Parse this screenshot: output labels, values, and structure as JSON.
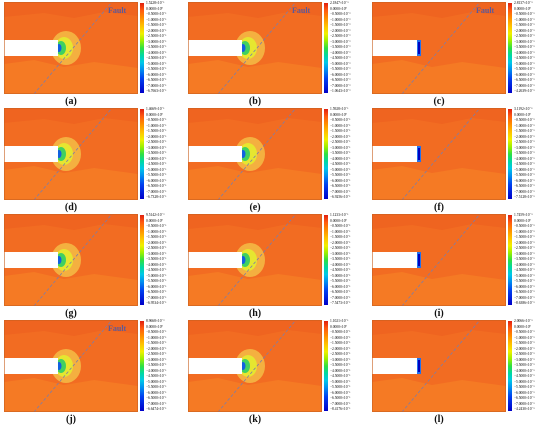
{
  "fault_label": "Fault",
  "panels": [
    {
      "caption": "(a)",
      "top": "1.5228×10⁻¹",
      "bottom": "−6.7663×10⁻¹",
      "shape": "hole",
      "fault_label": true
    },
    {
      "caption": "(b)",
      "top": "2.1847×10⁻³",
      "bottom": "−1.0643×10⁻²",
      "shape": "hole",
      "fault_label": true
    },
    {
      "caption": "(c)",
      "top": "2.8137×10⁻³",
      "bottom": "−4.2639×10⁻³",
      "shape": "face",
      "fault_label": true
    },
    {
      "caption": "(d)",
      "top": "1.4669×10⁻¹",
      "bottom": "−6.7328×10⁻¹",
      "shape": "hole",
      "fault_label": false
    },
    {
      "caption": "(e)",
      "top": "1.5928×10⁻¹",
      "bottom": "−6.9256×10⁻¹",
      "shape": "hole",
      "fault_label": false
    },
    {
      "caption": "(f)",
      "top": "3.1192×10⁻³",
      "bottom": "−7.5128×10⁻³",
      "shape": "face",
      "fault_label": false
    },
    {
      "caption": "(g)",
      "top": "9.5142×10⁻²",
      "bottom": "−6.9534×10⁻¹",
      "shape": "hole",
      "fault_label": false
    },
    {
      "caption": "(h)",
      "top": "1.1233×10⁻¹",
      "bottom": "−7.5473×10⁻¹",
      "shape": "hole",
      "fault_label": false
    },
    {
      "caption": "(i)",
      "top": "1.7459×10⁻³",
      "bottom": "−8.6386×10⁻³",
      "shape": "face",
      "fault_label": false
    },
    {
      "caption": "(j)",
      "top": "8.9668×10⁻²",
      "bottom": "−6.6474×10⁻¹",
      "shape": "hole",
      "fault_label": true
    },
    {
      "caption": "(k)",
      "top": "1.1021×10⁻¹",
      "bottom": "−8.4176×10⁻¹",
      "shape": "hole",
      "fault_label": false
    },
    {
      "caption": "(l)",
      "top": "2.0066×10⁻³",
      "bottom": "−4.2430×10⁻³",
      "shape": "face",
      "fault_label": false
    }
  ]
}
